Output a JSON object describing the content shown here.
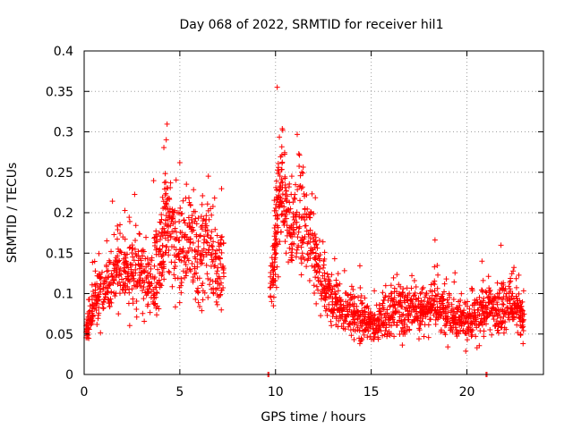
{
  "chart_data": {
    "type": "scatter",
    "title": "Day 068 of 2022, SRMTID for receiver hil1",
    "xlabel": "GPS time / hours",
    "ylabel": "SRMTID / TECUs",
    "xlim": [
      0,
      24
    ],
    "ylim": [
      0,
      0.4
    ],
    "grid": true,
    "x_ticks": [
      0,
      5,
      10,
      15,
      20
    ],
    "x_tick_labels": [
      "0",
      "5",
      "10",
      "15",
      "20"
    ],
    "y_ticks": [
      0,
      0.05,
      0.1,
      0.15,
      0.2,
      0.25,
      0.3,
      0.35,
      0.4
    ],
    "y_tick_labels": [
      "0",
      "0.05",
      "0.1",
      "0.15",
      "0.2",
      "0.25",
      "0.3",
      "0.35",
      "0.4"
    ],
    "marker": "+",
    "series": [
      {
        "name": "SRMTID",
        "color": "#ff0000",
        "x": [
          0.1,
          0.25,
          0.45,
          0.7,
          0.95,
          1.2,
          1.45,
          1.7,
          1.95,
          2.2,
          2.45,
          2.7,
          2.95,
          3.2,
          3.45,
          3.7,
          3.95,
          4.1,
          4.25,
          4.4,
          4.6,
          4.85,
          5.1,
          5.35,
          5.6,
          5.85,
          6.1,
          6.35,
          6.6,
          6.85,
          7.1,
          9.7,
          9.9,
          10.0,
          10.1,
          10.25,
          10.4,
          10.6,
          10.85,
          11.1,
          11.35,
          11.6,
          11.85,
          12.1,
          12.35,
          12.6,
          12.85,
          13.1,
          13.35,
          13.6,
          13.85,
          14.1,
          14.35,
          14.6,
          14.85,
          15.1,
          15.35,
          15.6,
          15.85,
          16.1,
          16.35,
          16.6,
          16.85,
          17.1,
          17.35,
          17.6,
          17.85,
          18.1,
          18.35,
          18.6,
          18.85,
          19.1,
          19.35,
          19.6,
          19.85,
          20.1,
          20.35,
          20.6,
          20.85,
          21.1,
          21.35,
          21.6,
          21.85,
          22.1,
          22.35,
          22.6,
          22.8
        ],
        "y": [
          0.06,
          0.075,
          0.09,
          0.105,
          0.11,
          0.12,
          0.125,
          0.14,
          0.13,
          0.12,
          0.125,
          0.13,
          0.12,
          0.115,
          0.12,
          0.13,
          0.15,
          0.17,
          0.19,
          0.18,
          0.16,
          0.15,
          0.16,
          0.17,
          0.16,
          0.15,
          0.16,
          0.15,
          0.14,
          0.13,
          0.13,
          0.12,
          0.15,
          0.2,
          0.22,
          0.23,
          0.21,
          0.19,
          0.18,
          0.19,
          0.18,
          0.17,
          0.15,
          0.13,
          0.11,
          0.1,
          0.09,
          0.085,
          0.08,
          0.08,
          0.075,
          0.07,
          0.07,
          0.065,
          0.065,
          0.06,
          0.065,
          0.07,
          0.08,
          0.085,
          0.08,
          0.075,
          0.08,
          0.085,
          0.08,
          0.08,
          0.085,
          0.09,
          0.085,
          0.08,
          0.08,
          0.075,
          0.07,
          0.07,
          0.065,
          0.065,
          0.07,
          0.075,
          0.08,
          0.085,
          0.08,
          0.08,
          0.085,
          0.09,
          0.085,
          0.075,
          0.07
        ],
        "spread": [
          0.02,
          0.025,
          0.03,
          0.035,
          0.035,
          0.04,
          0.04,
          0.045,
          0.045,
          0.045,
          0.045,
          0.045,
          0.045,
          0.045,
          0.045,
          0.05,
          0.06,
          0.07,
          0.07,
          0.065,
          0.06,
          0.06,
          0.065,
          0.07,
          0.065,
          0.06,
          0.06,
          0.055,
          0.055,
          0.05,
          0.05,
          0.04,
          0.06,
          0.08,
          0.08,
          0.07,
          0.06,
          0.06,
          0.06,
          0.06,
          0.055,
          0.05,
          0.045,
          0.04,
          0.035,
          0.03,
          0.03,
          0.028,
          0.025,
          0.025,
          0.025,
          0.025,
          0.025,
          0.022,
          0.022,
          0.022,
          0.025,
          0.03,
          0.035,
          0.035,
          0.03,
          0.03,
          0.03,
          0.03,
          0.03,
          0.03,
          0.03,
          0.03,
          0.03,
          0.03,
          0.03,
          0.025,
          0.025,
          0.025,
          0.025,
          0.025,
          0.028,
          0.03,
          0.03,
          0.03,
          0.03,
          0.03,
          0.03,
          0.03,
          0.03,
          0.028,
          0.025
        ]
      }
    ],
    "zero_markers": {
      "x": [
        9.6,
        9.65,
        21.0,
        21.05
      ],
      "y": 0
    }
  }
}
